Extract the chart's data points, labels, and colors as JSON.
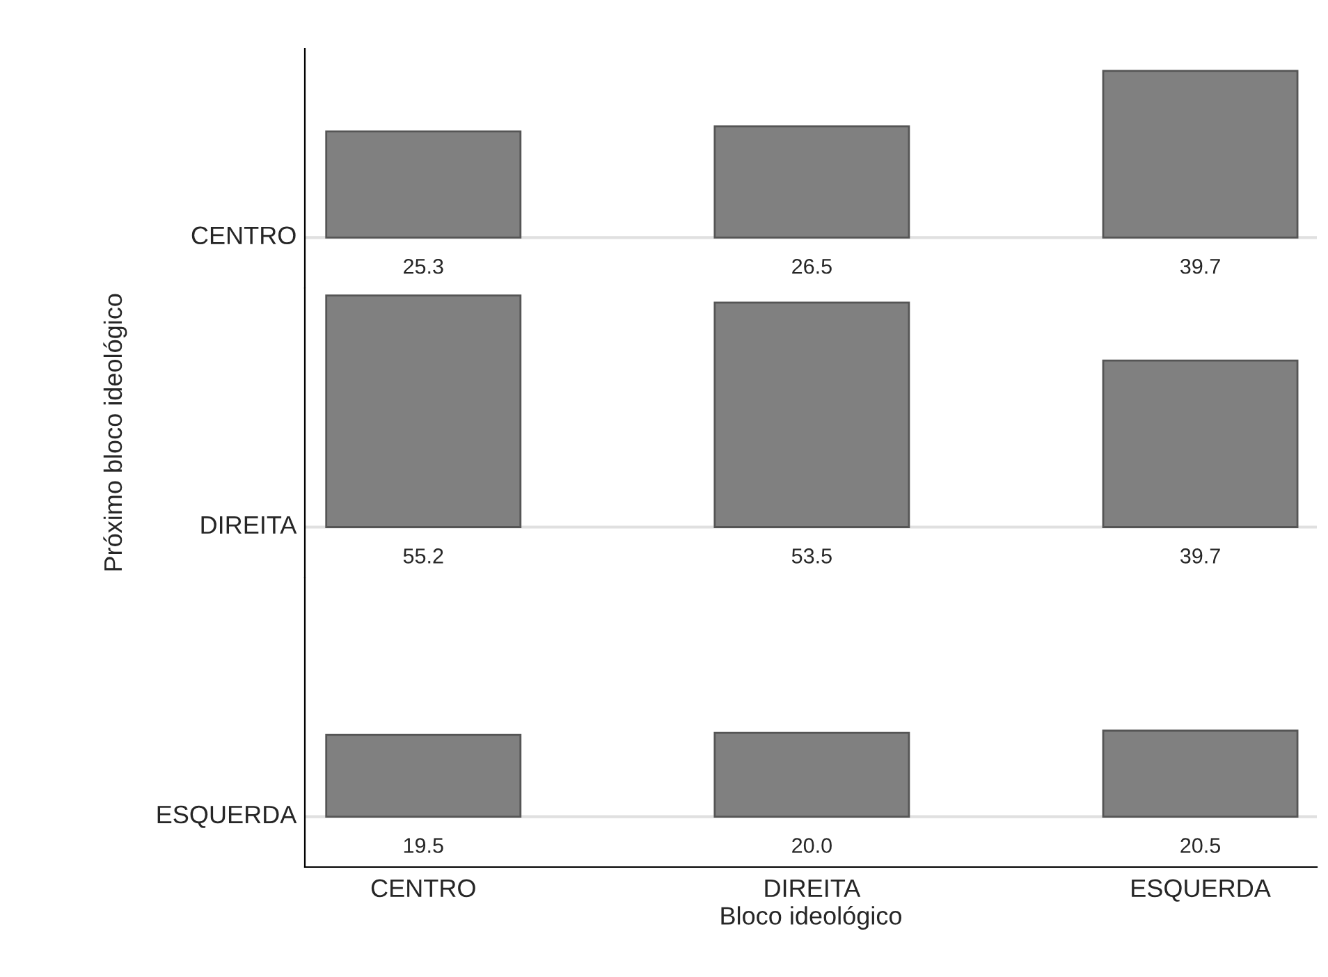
{
  "chart_data": [
    {
      "type": "bar",
      "categories": [
        null,
        null,
        null
      ],
      "values": [
        25.3,
        26.5,
        39.7
      ],
      "value_labels": [
        "25.3",
        "26.5",
        "39.7"
      ],
      "color": "#808080",
      "ylim": [
        -12,
        45
      ],
      "annotations": [
        "CENTRO"
      ],
      "tick_labels": false
    },
    {
      "type": "bar",
      "ylabel": "Próximo bloco ideológico",
      "categories": [
        null,
        null,
        null
      ],
      "values": [
        55.2,
        53.5,
        39.7
      ],
      "value_labels": [
        "55.2",
        "53.5",
        "39.7"
      ],
      "color": "#808080",
      "ylim": [
        -12,
        57
      ],
      "annotations": [
        "DIREITA"
      ],
      "tick_labels": false
    },
    {
      "type": "bar",
      "xlabel": "Bloco ideológico",
      "categories": [
        "CENTRO",
        "DIREITA",
        "ESQUERDA"
      ],
      "values": [
        19.5,
        20.0,
        20.5
      ],
      "value_labels": [
        "19.5",
        "20.0",
        "20.5"
      ],
      "color": "#808080",
      "ylim": [
        -12,
        57
      ],
      "annotations": [
        "ESQUERDA"
      ],
      "tick_labels": "x"
    }
  ]
}
